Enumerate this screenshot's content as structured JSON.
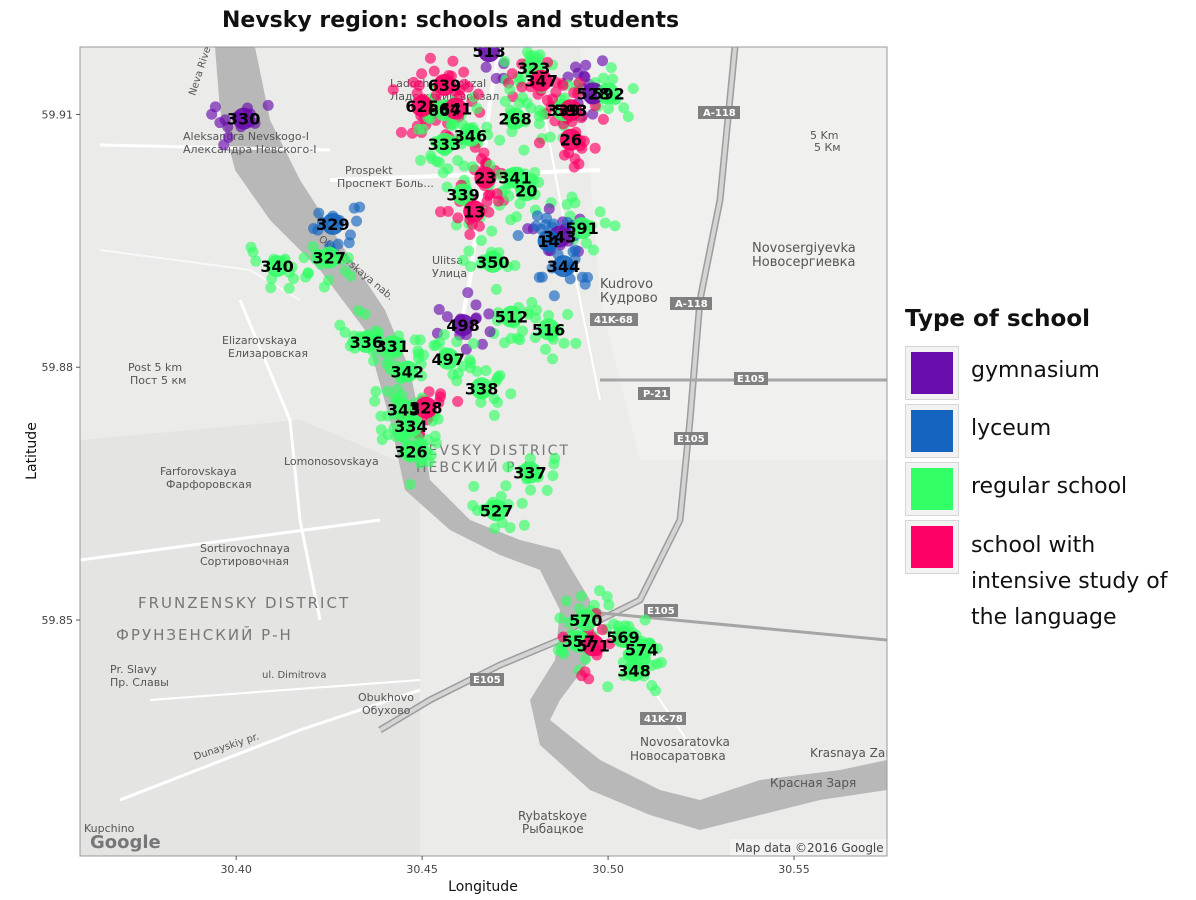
{
  "chart_data": {
    "type": "scatter",
    "title": "Nevsky region: schools and students",
    "xlabel": "Longitude",
    "ylabel": "Latitude",
    "xlim": [
      30.358,
      30.575
    ],
    "ylim": [
      59.822,
      59.918
    ],
    "x_ticks": [
      {
        "value": 30.4,
        "label": "30.40"
      },
      {
        "value": 30.45,
        "label": "30.45"
      },
      {
        "value": 30.5,
        "label": "30.50"
      },
      {
        "value": 30.55,
        "label": "30.55"
      }
    ],
    "y_ticks": [
      {
        "value": 59.91,
        "label": "59.91"
      },
      {
        "value": 59.88,
        "label": "59.88"
      },
      {
        "value": 59.85,
        "label": "59.85"
      }
    ],
    "legend": {
      "title": "Type of school",
      "position": "right",
      "entries": [
        {
          "name": "gymnasium",
          "color": "#6a0dad"
        },
        {
          "name": "lyceum",
          "color": "#1565c0"
        },
        {
          "name": "regular school",
          "color": "#33ff66"
        },
        {
          "name": "school with intensive study of the language",
          "color": "#ff0066"
        }
      ]
    },
    "schools": [
      {
        "label": "513",
        "x": 30.468,
        "y": 59.9175,
        "type": "gymnasium"
      },
      {
        "label": "323",
        "x": 30.48,
        "y": 59.9155,
        "type": "regular school"
      },
      {
        "label": "347",
        "x": 30.482,
        "y": 59.914,
        "type": "school with intensive study of the language"
      },
      {
        "label": "639",
        "x": 30.456,
        "y": 59.9135,
        "type": "school with intensive study of the language"
      },
      {
        "label": "528",
        "x": 30.496,
        "y": 59.9125,
        "type": "gymnasium"
      },
      {
        "label": "592",
        "x": 30.5,
        "y": 59.9125,
        "type": "regular school"
      },
      {
        "label": "625",
        "x": 30.45,
        "y": 59.911,
        "type": "school with intensive study of the language"
      },
      {
        "label": "667",
        "x": 30.456,
        "y": 59.9105,
        "type": "regular school"
      },
      {
        "label": "641",
        "x": 30.459,
        "y": 59.9107,
        "type": "school with intensive study of the language"
      },
      {
        "label": "339",
        "x": 30.488,
        "y": 59.9105,
        "type": "regular school"
      },
      {
        "label": "593",
        "x": 30.49,
        "y": 59.9105,
        "type": "school with intensive study of the language"
      },
      {
        "label": "268",
        "x": 30.475,
        "y": 59.9095,
        "type": "regular school"
      },
      {
        "label": "346",
        "x": 30.463,
        "y": 59.9075,
        "type": "regular school"
      },
      {
        "label": "26",
        "x": 30.49,
        "y": 59.907,
        "type": "school with intensive study of the language"
      },
      {
        "label": "330",
        "x": 30.402,
        "y": 59.9095,
        "type": "gymnasium"
      },
      {
        "label": "333",
        "x": 30.456,
        "y": 59.9065,
        "type": "regular school"
      },
      {
        "label": "23",
        "x": 30.467,
        "y": 59.9025,
        "type": "school with intensive study of the language"
      },
      {
        "label": "341",
        "x": 30.475,
        "y": 59.9025,
        "type": "regular school"
      },
      {
        "label": "20",
        "x": 30.478,
        "y": 59.901,
        "type": "regular school"
      },
      {
        "label": "339",
        "x": 30.461,
        "y": 59.9005,
        "type": "regular school"
      },
      {
        "label": "13",
        "x": 30.464,
        "y": 59.8985,
        "type": "school with intensive study of the language"
      },
      {
        "label": "591",
        "x": 30.493,
        "y": 59.8965,
        "type": "regular school"
      },
      {
        "label": "329",
        "x": 30.426,
        "y": 59.897,
        "type": "lyceum"
      },
      {
        "label": "343",
        "x": 30.487,
        "y": 59.8955,
        "type": "gymnasium"
      },
      {
        "label": "14",
        "x": 30.484,
        "y": 59.895,
        "type": "lyceum"
      },
      {
        "label": "327",
        "x": 30.425,
        "y": 59.893,
        "type": "regular school"
      },
      {
        "label": "340",
        "x": 30.411,
        "y": 59.892,
        "type": "regular school"
      },
      {
        "label": "350",
        "x": 30.469,
        "y": 59.8925,
        "type": "regular school"
      },
      {
        "label": "344",
        "x": 30.488,
        "y": 59.892,
        "type": "lyceum"
      },
      {
        "label": "512",
        "x": 30.474,
        "y": 59.886,
        "type": "regular school"
      },
      {
        "label": "498",
        "x": 30.461,
        "y": 59.885,
        "type": "gymnasium"
      },
      {
        "label": "516",
        "x": 30.484,
        "y": 59.8845,
        "type": "regular school"
      },
      {
        "label": "336",
        "x": 30.435,
        "y": 59.883,
        "type": "regular school"
      },
      {
        "label": "331",
        "x": 30.442,
        "y": 59.8825,
        "type": "regular school"
      },
      {
        "label": "497",
        "x": 30.457,
        "y": 59.881,
        "type": "regular school"
      },
      {
        "label": "342",
        "x": 30.446,
        "y": 59.8795,
        "type": "regular school"
      },
      {
        "label": "338",
        "x": 30.466,
        "y": 59.8775,
        "type": "regular school"
      },
      {
        "label": "343",
        "x": 30.445,
        "y": 59.875,
        "type": "regular school"
      },
      {
        "label": "328",
        "x": 30.451,
        "y": 59.8752,
        "type": "school with intensive study of the language"
      },
      {
        "label": "334",
        "x": 30.447,
        "y": 59.873,
        "type": "regular school"
      },
      {
        "label": "326",
        "x": 30.447,
        "y": 59.87,
        "type": "regular school"
      },
      {
        "label": "337",
        "x": 30.479,
        "y": 59.8675,
        "type": "regular school"
      },
      {
        "label": "527",
        "x": 30.47,
        "y": 59.863,
        "type": "regular school"
      },
      {
        "label": "570",
        "x": 30.494,
        "y": 59.85,
        "type": "regular school"
      },
      {
        "label": "569",
        "x": 30.504,
        "y": 59.848,
        "type": "regular school"
      },
      {
        "label": "557",
        "x": 30.492,
        "y": 59.8475,
        "type": "regular school"
      },
      {
        "label": "571",
        "x": 30.496,
        "y": 59.847,
        "type": "school with intensive study of the language"
      },
      {
        "label": "574",
        "x": 30.509,
        "y": 59.8465,
        "type": "regular school"
      },
      {
        "label": "348",
        "x": 30.507,
        "y": 59.844,
        "type": "regular school"
      }
    ]
  },
  "map": {
    "attribution": "Map data ©2016 Google",
    "google_logo": "Google",
    "road_shields": [
      "A-118",
      "A-118",
      "41K-68",
      "P-21",
      "E105",
      "E105",
      "E105",
      "E105",
      "41K-78"
    ],
    "place_labels": [
      {
        "en": "Ladozhsky vokzal",
        "ru": "Ладожский вокзал"
      },
      {
        "en": "Aleksandra Nevskogo-I",
        "ru": "Александра Невского-I"
      },
      {
        "en": "Prospekt",
        "ru": "Проспект Боль..."
      },
      {
        "en": "Ulitsa",
        "ru": "Улица"
      },
      {
        "en": "Kudrovo",
        "ru": "Кудрово"
      },
      {
        "en": "Novosergiyevka",
        "ru": "Новосергиевка"
      },
      {
        "en": "5 Km",
        "ru": "5 Км"
      },
      {
        "en": "Elizarovskaya",
        "ru": "Елизаровская"
      },
      {
        "en": "Post 5 km",
        "ru": "Пост 5 км"
      },
      {
        "en": "Lomonosovskaya",
        "ru": ""
      },
      {
        "en": "Farforovskaya",
        "ru": "Фарфоровская"
      },
      {
        "en": "Sortirovochnaya",
        "ru": "Сортировочная"
      },
      {
        "en": "FRUNZENSKY DISTRICT",
        "ru": "ФРУНЗЕНСКИЙ Р-Н"
      },
      {
        "en": "NEVSKY DISTRICT",
        "ru": "НЕВСКИЙ Р-Н"
      },
      {
        "en": "Pr. Slavy",
        "ru": "Пр. Славы"
      },
      {
        "en": "Obukhovo",
        "ru": "Обухово"
      },
      {
        "en": "Novosaratovka",
        "ru": "Новосаратовка"
      },
      {
        "en": "Krasnaya Zarya",
        "ru": "Красная Заря"
      },
      {
        "en": "Rybatskoye",
        "ru": "Рыбацкое"
      },
      {
        "en": "Kupchino",
        "ru": ""
      },
      {
        "en": "Neva River",
        "ru": ""
      },
      {
        "en": "Oktyabrskaya nab.",
        "ru": ""
      },
      {
        "en": "Dunayskiy pr.",
        "ru": ""
      },
      {
        "en": "ul. Dimitrova",
        "ru": ""
      }
    ]
  }
}
